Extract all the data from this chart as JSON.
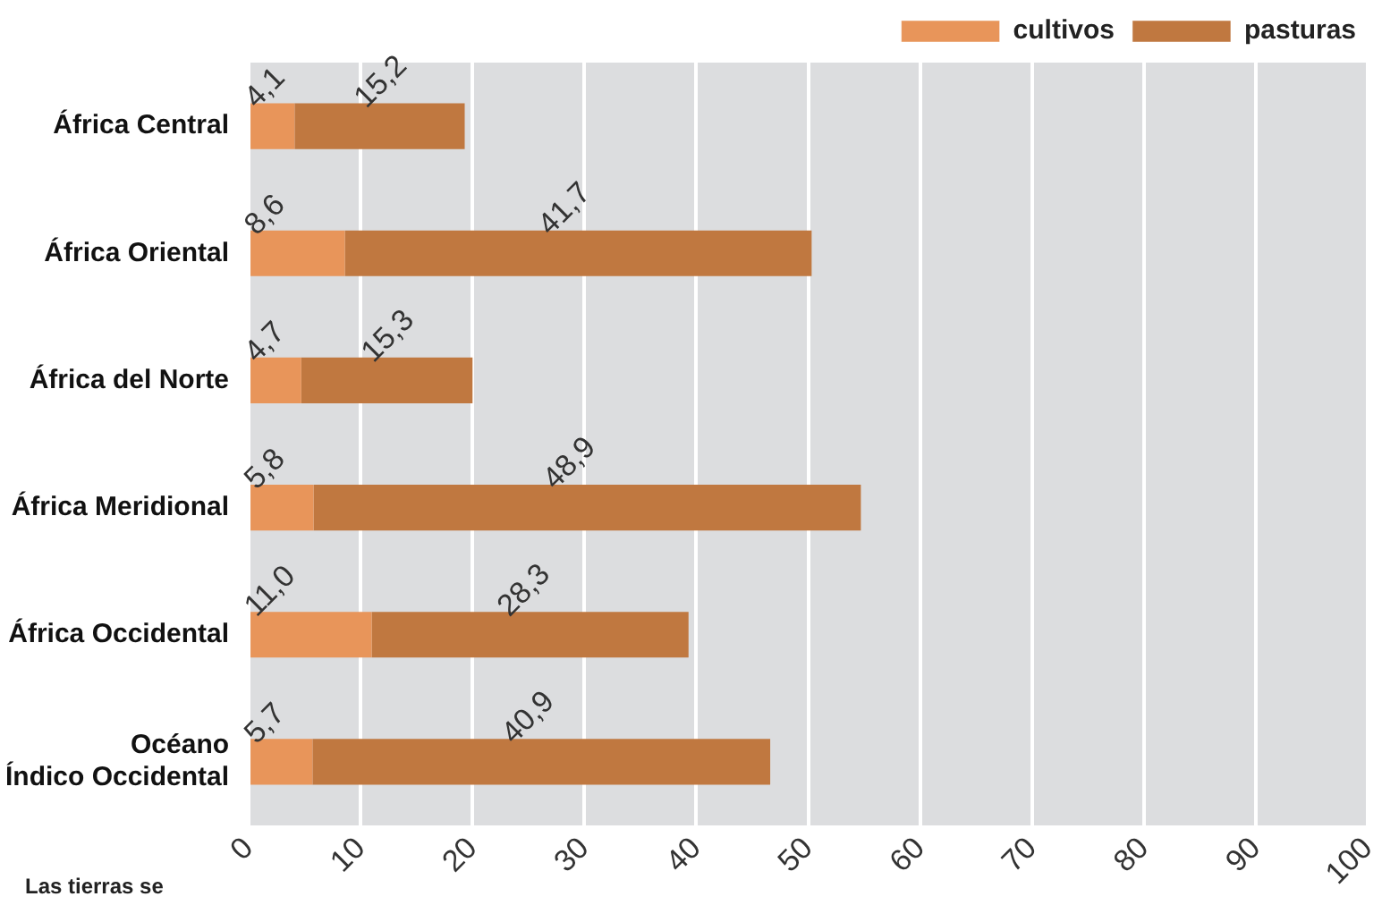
{
  "chart_data": {
    "type": "bar",
    "orientation": "horizontal",
    "stacked": true,
    "categories": [
      "África Central",
      "África Oriental",
      "África del Norte",
      "África Meridional",
      "África Occidental",
      "Océano Índico Occidental"
    ],
    "series": [
      {
        "name": "cultivos",
        "color": "#e8955a",
        "values": [
          4.1,
          8.6,
          4.7,
          5.8,
          11.0,
          5.7
        ],
        "value_labels": [
          "4,1",
          "8,6",
          "4,7",
          "5,8",
          "11,0",
          "5,7"
        ]
      },
      {
        "name": "pasturas",
        "color": "#c07840",
        "values": [
          15.2,
          41.7,
          15.3,
          48.9,
          28.3,
          40.9
        ],
        "value_labels": [
          "15,2",
          "41,7",
          "15,3",
          "48,9",
          "28,3",
          "40,9"
        ]
      }
    ],
    "xlim": [
      0,
      100
    ],
    "xticks": [
      0,
      10,
      20,
      30,
      40,
      50,
      60,
      70,
      80,
      90,
      100
    ],
    "grid": "x",
    "legend": "top right",
    "annotations": [
      "Las tierras se"
    ]
  }
}
